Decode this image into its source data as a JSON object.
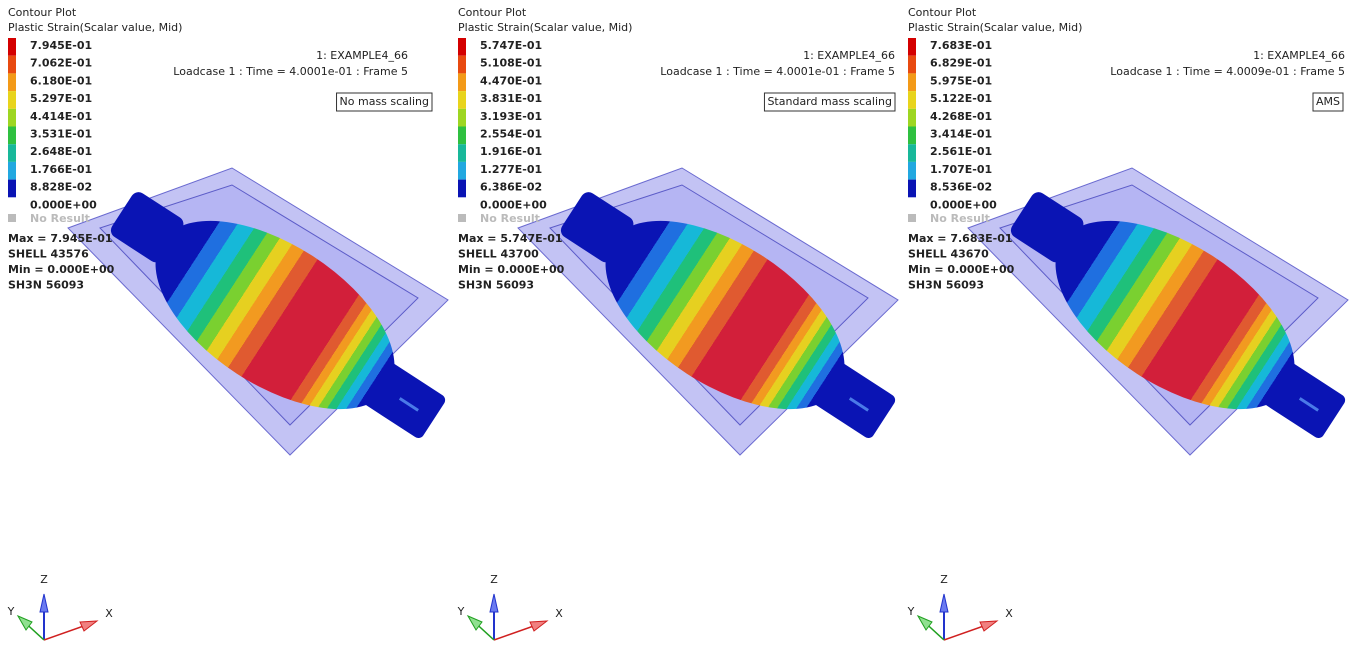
{
  "panels": [
    {
      "title": "Contour Plot",
      "subtitle": "Plastic Strain(Scalar value, Mid)",
      "legend": [
        "7.945E-01",
        "7.062E-01",
        "6.180E-01",
        "5.297E-01",
        "4.414E-01",
        "3.531E-01",
        "2.648E-01",
        "1.766E-01",
        "8.828E-02",
        "0.000E+00"
      ],
      "no_result": "No Result",
      "max": "Max = 7.945E-01",
      "element": "SHELL 43576",
      "min": "Min = 0.000E+00",
      "node": "SH3N 56093",
      "model": "1: EXAMPLE4_66",
      "loadcase": "Loadcase 1 : Time = 4.0001e-01 : Frame 5",
      "label": "No mass scaling",
      "axes": {
        "z": "Z",
        "y": "Y",
        "x": "X"
      }
    },
    {
      "title": "Contour Plot",
      "subtitle": "Plastic Strain(Scalar value, Mid)",
      "legend": [
        "5.747E-01",
        "5.108E-01",
        "4.470E-01",
        "3.831E-01",
        "3.193E-01",
        "2.554E-01",
        "1.916E-01",
        "1.277E-01",
        "6.386E-02",
        "0.000E+00"
      ],
      "no_result": "No Result",
      "max": "Max = 5.747E-01",
      "element": "SHELL 43700",
      "min": "Min = 0.000E+00",
      "node": "SH3N 56093",
      "model": "1: EXAMPLE4_66",
      "loadcase": "Loadcase 1 : Time = 4.0001e-01 : Frame 5",
      "label": "Standard mass scaling",
      "axes": {
        "z": "Z",
        "y": "Y",
        "x": "X"
      }
    },
    {
      "title": "Contour Plot",
      "subtitle": "Plastic Strain(Scalar value, Mid)",
      "legend": [
        "7.683E-01",
        "6.829E-01",
        "5.975E-01",
        "5.122E-01",
        "4.268E-01",
        "3.414E-01",
        "2.561E-01",
        "1.707E-01",
        "8.536E-02",
        "0.000E+00"
      ],
      "no_result": "No Result",
      "max": "Max = 7.683E-01",
      "element": "SHELL 43670",
      "min": "Min = 0.000E+00",
      "node": "SH3N 56093",
      "model": "1: EXAMPLE4_66",
      "loadcase": "Loadcase 1 : Time = 4.0009e-01 : Frame 5",
      "label": "AMS",
      "axes": {
        "z": "Z",
        "y": "Y",
        "x": "X"
      }
    }
  ]
}
